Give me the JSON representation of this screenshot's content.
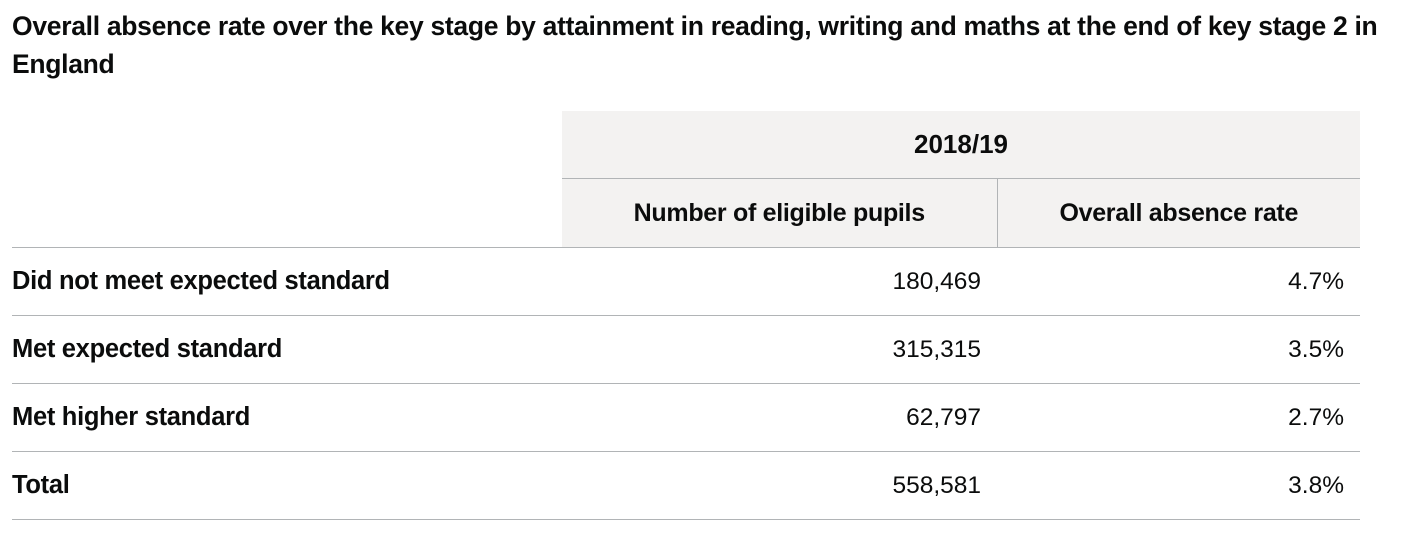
{
  "title": "Overall absence rate over the key stage by attainment in reading, writing and maths at the end of key stage 2 in England",
  "table": {
    "year_header": "2018/19",
    "column_headers": [
      "Number of eligible pupils",
      "Overall absence rate"
    ],
    "rows": [
      {
        "label": "Did not meet expected standard",
        "pupils": "180,469",
        "rate": "4.7%"
      },
      {
        "label": "Met expected standard",
        "pupils": "315,315",
        "rate": "3.5%"
      },
      {
        "label": "Met higher standard",
        "pupils": "62,797",
        "rate": "2.7%"
      },
      {
        "label": "Total",
        "pupils": "558,581",
        "rate": "3.8%"
      }
    ]
  },
  "colors": {
    "text": "#0b0c0c",
    "header_background": "#f3f2f1",
    "border": "#b1b4b6"
  }
}
